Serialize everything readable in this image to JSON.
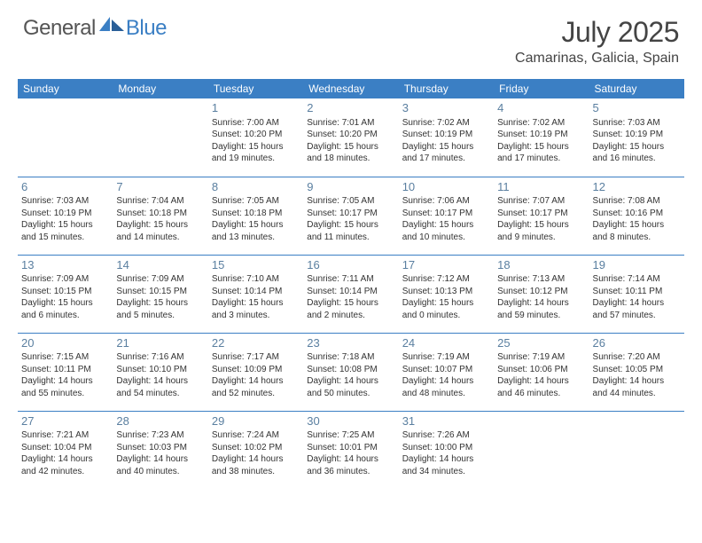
{
  "brand": {
    "general": "General",
    "blue": "Blue"
  },
  "title": "July 2025",
  "location": "Camarinas, Galicia, Spain",
  "colors": {
    "header_bg": "#3b7fc4",
    "header_text": "#ffffff",
    "divider": "#3b7fc4",
    "daynum": "#5a7fa0",
    "body_text": "#333333",
    "title_text": "#444444"
  },
  "fonts": {
    "title_size": 32,
    "location_size": 16,
    "head_size": 12,
    "cell_size": 10,
    "daynum_size": 13
  },
  "day_headers": [
    "Sunday",
    "Monday",
    "Tuesday",
    "Wednesday",
    "Thursday",
    "Friday",
    "Saturday"
  ],
  "weeks": [
    [
      null,
      null,
      {
        "n": "1",
        "sr": "7:00 AM",
        "ss": "10:20 PM",
        "dl1": "15 hours",
        "dl2": "and 19 minutes."
      },
      {
        "n": "2",
        "sr": "7:01 AM",
        "ss": "10:20 PM",
        "dl1": "15 hours",
        "dl2": "and 18 minutes."
      },
      {
        "n": "3",
        "sr": "7:02 AM",
        "ss": "10:19 PM",
        "dl1": "15 hours",
        "dl2": "and 17 minutes."
      },
      {
        "n": "4",
        "sr": "7:02 AM",
        "ss": "10:19 PM",
        "dl1": "15 hours",
        "dl2": "and 17 minutes."
      },
      {
        "n": "5",
        "sr": "7:03 AM",
        "ss": "10:19 PM",
        "dl1": "15 hours",
        "dl2": "and 16 minutes."
      }
    ],
    [
      {
        "n": "6",
        "sr": "7:03 AM",
        "ss": "10:19 PM",
        "dl1": "15 hours",
        "dl2": "and 15 minutes."
      },
      {
        "n": "7",
        "sr": "7:04 AM",
        "ss": "10:18 PM",
        "dl1": "15 hours",
        "dl2": "and 14 minutes."
      },
      {
        "n": "8",
        "sr": "7:05 AM",
        "ss": "10:18 PM",
        "dl1": "15 hours",
        "dl2": "and 13 minutes."
      },
      {
        "n": "9",
        "sr": "7:05 AM",
        "ss": "10:17 PM",
        "dl1": "15 hours",
        "dl2": "and 11 minutes."
      },
      {
        "n": "10",
        "sr": "7:06 AM",
        "ss": "10:17 PM",
        "dl1": "15 hours",
        "dl2": "and 10 minutes."
      },
      {
        "n": "11",
        "sr": "7:07 AM",
        "ss": "10:17 PM",
        "dl1": "15 hours",
        "dl2": "and 9 minutes."
      },
      {
        "n": "12",
        "sr": "7:08 AM",
        "ss": "10:16 PM",
        "dl1": "15 hours",
        "dl2": "and 8 minutes."
      }
    ],
    [
      {
        "n": "13",
        "sr": "7:09 AM",
        "ss": "10:15 PM",
        "dl1": "15 hours",
        "dl2": "and 6 minutes."
      },
      {
        "n": "14",
        "sr": "7:09 AM",
        "ss": "10:15 PM",
        "dl1": "15 hours",
        "dl2": "and 5 minutes."
      },
      {
        "n": "15",
        "sr": "7:10 AM",
        "ss": "10:14 PM",
        "dl1": "15 hours",
        "dl2": "and 3 minutes."
      },
      {
        "n": "16",
        "sr": "7:11 AM",
        "ss": "10:14 PM",
        "dl1": "15 hours",
        "dl2": "and 2 minutes."
      },
      {
        "n": "17",
        "sr": "7:12 AM",
        "ss": "10:13 PM",
        "dl1": "15 hours",
        "dl2": "and 0 minutes."
      },
      {
        "n": "18",
        "sr": "7:13 AM",
        "ss": "10:12 PM",
        "dl1": "14 hours",
        "dl2": "and 59 minutes."
      },
      {
        "n": "19",
        "sr": "7:14 AM",
        "ss": "10:11 PM",
        "dl1": "14 hours",
        "dl2": "and 57 minutes."
      }
    ],
    [
      {
        "n": "20",
        "sr": "7:15 AM",
        "ss": "10:11 PM",
        "dl1": "14 hours",
        "dl2": "and 55 minutes."
      },
      {
        "n": "21",
        "sr": "7:16 AM",
        "ss": "10:10 PM",
        "dl1": "14 hours",
        "dl2": "and 54 minutes."
      },
      {
        "n": "22",
        "sr": "7:17 AM",
        "ss": "10:09 PM",
        "dl1": "14 hours",
        "dl2": "and 52 minutes."
      },
      {
        "n": "23",
        "sr": "7:18 AM",
        "ss": "10:08 PM",
        "dl1": "14 hours",
        "dl2": "and 50 minutes."
      },
      {
        "n": "24",
        "sr": "7:19 AM",
        "ss": "10:07 PM",
        "dl1": "14 hours",
        "dl2": "and 48 minutes."
      },
      {
        "n": "25",
        "sr": "7:19 AM",
        "ss": "10:06 PM",
        "dl1": "14 hours",
        "dl2": "and 46 minutes."
      },
      {
        "n": "26",
        "sr": "7:20 AM",
        "ss": "10:05 PM",
        "dl1": "14 hours",
        "dl2": "and 44 minutes."
      }
    ],
    [
      {
        "n": "27",
        "sr": "7:21 AM",
        "ss": "10:04 PM",
        "dl1": "14 hours",
        "dl2": "and 42 minutes."
      },
      {
        "n": "28",
        "sr": "7:23 AM",
        "ss": "10:03 PM",
        "dl1": "14 hours",
        "dl2": "and 40 minutes."
      },
      {
        "n": "29",
        "sr": "7:24 AM",
        "ss": "10:02 PM",
        "dl1": "14 hours",
        "dl2": "and 38 minutes."
      },
      {
        "n": "30",
        "sr": "7:25 AM",
        "ss": "10:01 PM",
        "dl1": "14 hours",
        "dl2": "and 36 minutes."
      },
      {
        "n": "31",
        "sr": "7:26 AM",
        "ss": "10:00 PM",
        "dl1": "14 hours",
        "dl2": "and 34 minutes."
      },
      null,
      null
    ]
  ],
  "labels": {
    "sunrise": "Sunrise: ",
    "sunset": "Sunset: ",
    "daylight": "Daylight: "
  }
}
